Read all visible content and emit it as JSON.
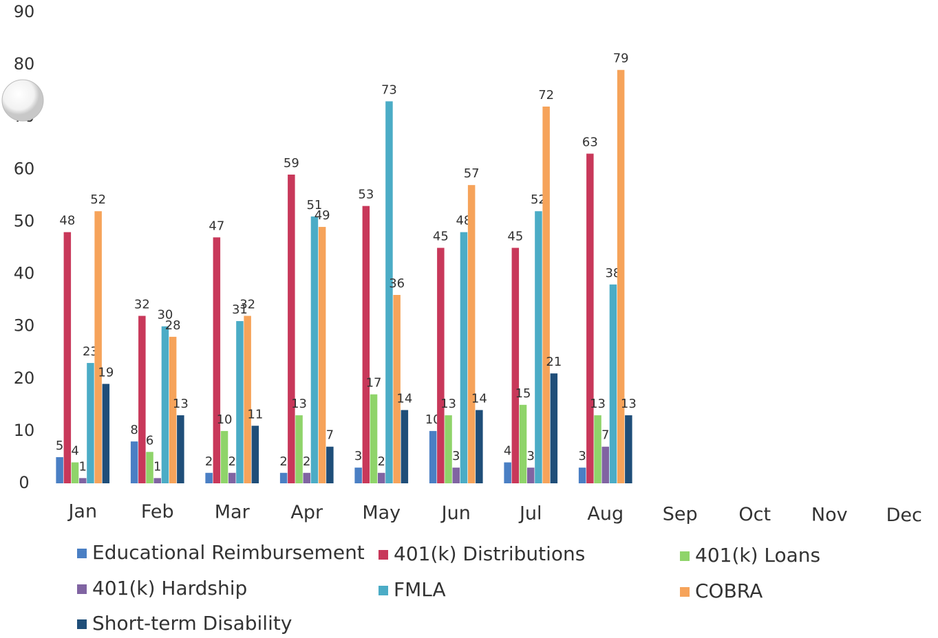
{
  "chart_data": {
    "type": "bar",
    "categories": [
      "Jan",
      "Feb",
      "Mar",
      "Apr",
      "May",
      "Jun",
      "Jul",
      "Aug",
      "Sep",
      "Oct",
      "Nov",
      "Dec"
    ],
    "series": [
      {
        "name": "Educational Reimbursement",
        "color": "#4a7fc4",
        "values": [
          5,
          8,
          2,
          2,
          3,
          10,
          4,
          3,
          null,
          null,
          null,
          null
        ]
      },
      {
        "name": "401(k) Distributions",
        "color": "#c8385a",
        "values": [
          48,
          32,
          47,
          59,
          53,
          45,
          45,
          63,
          null,
          null,
          null,
          null
        ]
      },
      {
        "name": "401(k) Loans",
        "color": "#8fd46a",
        "values": [
          4,
          6,
          10,
          13,
          17,
          13,
          15,
          13,
          null,
          null,
          null,
          null
        ]
      },
      {
        "name": "401(k) Hardship",
        "color": "#8064a2",
        "values": [
          1,
          1,
          2,
          2,
          2,
          3,
          3,
          7,
          null,
          null,
          null,
          null
        ]
      },
      {
        "name": "FMLA",
        "color": "#4bacc6",
        "values": [
          23,
          30,
          31,
          51,
          73,
          48,
          52,
          38,
          null,
          null,
          null,
          null
        ]
      },
      {
        "name": "COBRA",
        "color": "#f6a35a",
        "values": [
          52,
          28,
          32,
          49,
          36,
          57,
          72,
          79,
          null,
          null,
          null,
          null
        ]
      },
      {
        "name": "Short-term Disability",
        "color": "#1f4e79",
        "values": [
          19,
          13,
          11,
          7,
          14,
          14,
          21,
          13,
          null,
          null,
          null,
          null
        ]
      }
    ],
    "ylim": [
      0,
      90
    ],
    "yticks": [
      0,
      10,
      20,
      30,
      40,
      50,
      60,
      70,
      80,
      90
    ],
    "grid": false,
    "legend": "bottom"
  }
}
